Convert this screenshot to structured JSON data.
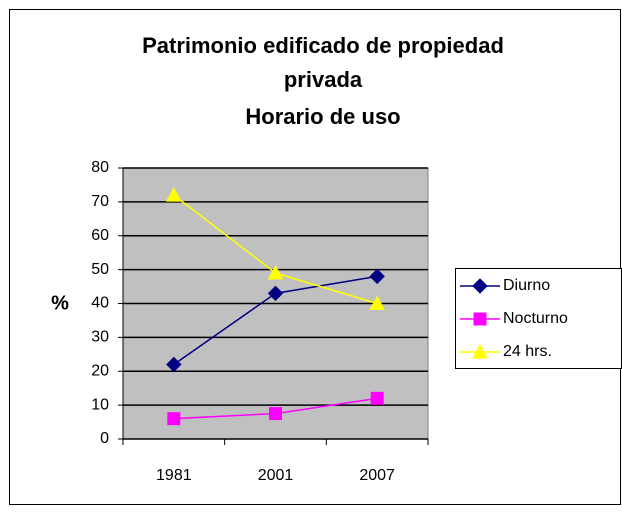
{
  "chart_data": {
    "type": "line",
    "title": [
      "Patrimonio edificado de propiedad",
      "privada",
      "Horario de uso"
    ],
    "y_label": "%",
    "categories": [
      "1981",
      "2001",
      "2007"
    ],
    "series": [
      {
        "name": "Diurno",
        "color": "#000080",
        "marker": "diamond",
        "values": [
          22,
          43,
          48
        ]
      },
      {
        "name": "Nocturno",
        "color": "#ff00ff",
        "marker": "square",
        "values": [
          6,
          7.5,
          12
        ]
      },
      {
        "name": "24 hrs.",
        "color": "#ffff00",
        "marker": "triangle",
        "values": [
          72,
          49,
          40
        ]
      }
    ],
    "ylim": [
      0,
      80
    ],
    "yticks": [
      0,
      10,
      20,
      30,
      40,
      50,
      60,
      70,
      80
    ],
    "grid": true,
    "legend": "right"
  }
}
